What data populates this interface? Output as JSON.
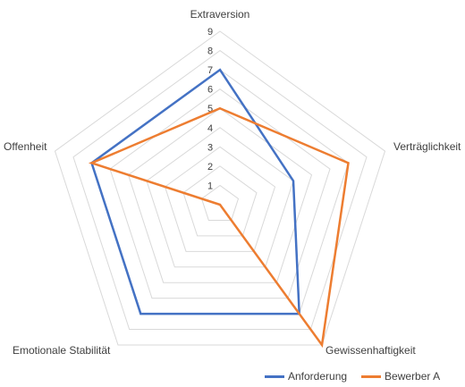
{
  "chart_data": {
    "type": "radar",
    "categories": [
      "Extraversion",
      "Verträglichkeit",
      "Gewissenhaftigkeit",
      "Emotionale Stabilität",
      "Offenheit"
    ],
    "rlim": [
      0,
      9
    ],
    "ticks": [
      "1",
      "2",
      "3",
      "4",
      "5",
      "6",
      "7",
      "8",
      "9"
    ],
    "series": [
      {
        "name": "Anforderung",
        "color": "#4472C4",
        "values": [
          7,
          4,
          7,
          7,
          7
        ]
      },
      {
        "name": "Bewerber A",
        "color": "#ED7D31",
        "values": [
          5,
          7,
          9,
          0,
          7
        ]
      }
    ],
    "grid": true,
    "legend_position": "bottom-right"
  }
}
